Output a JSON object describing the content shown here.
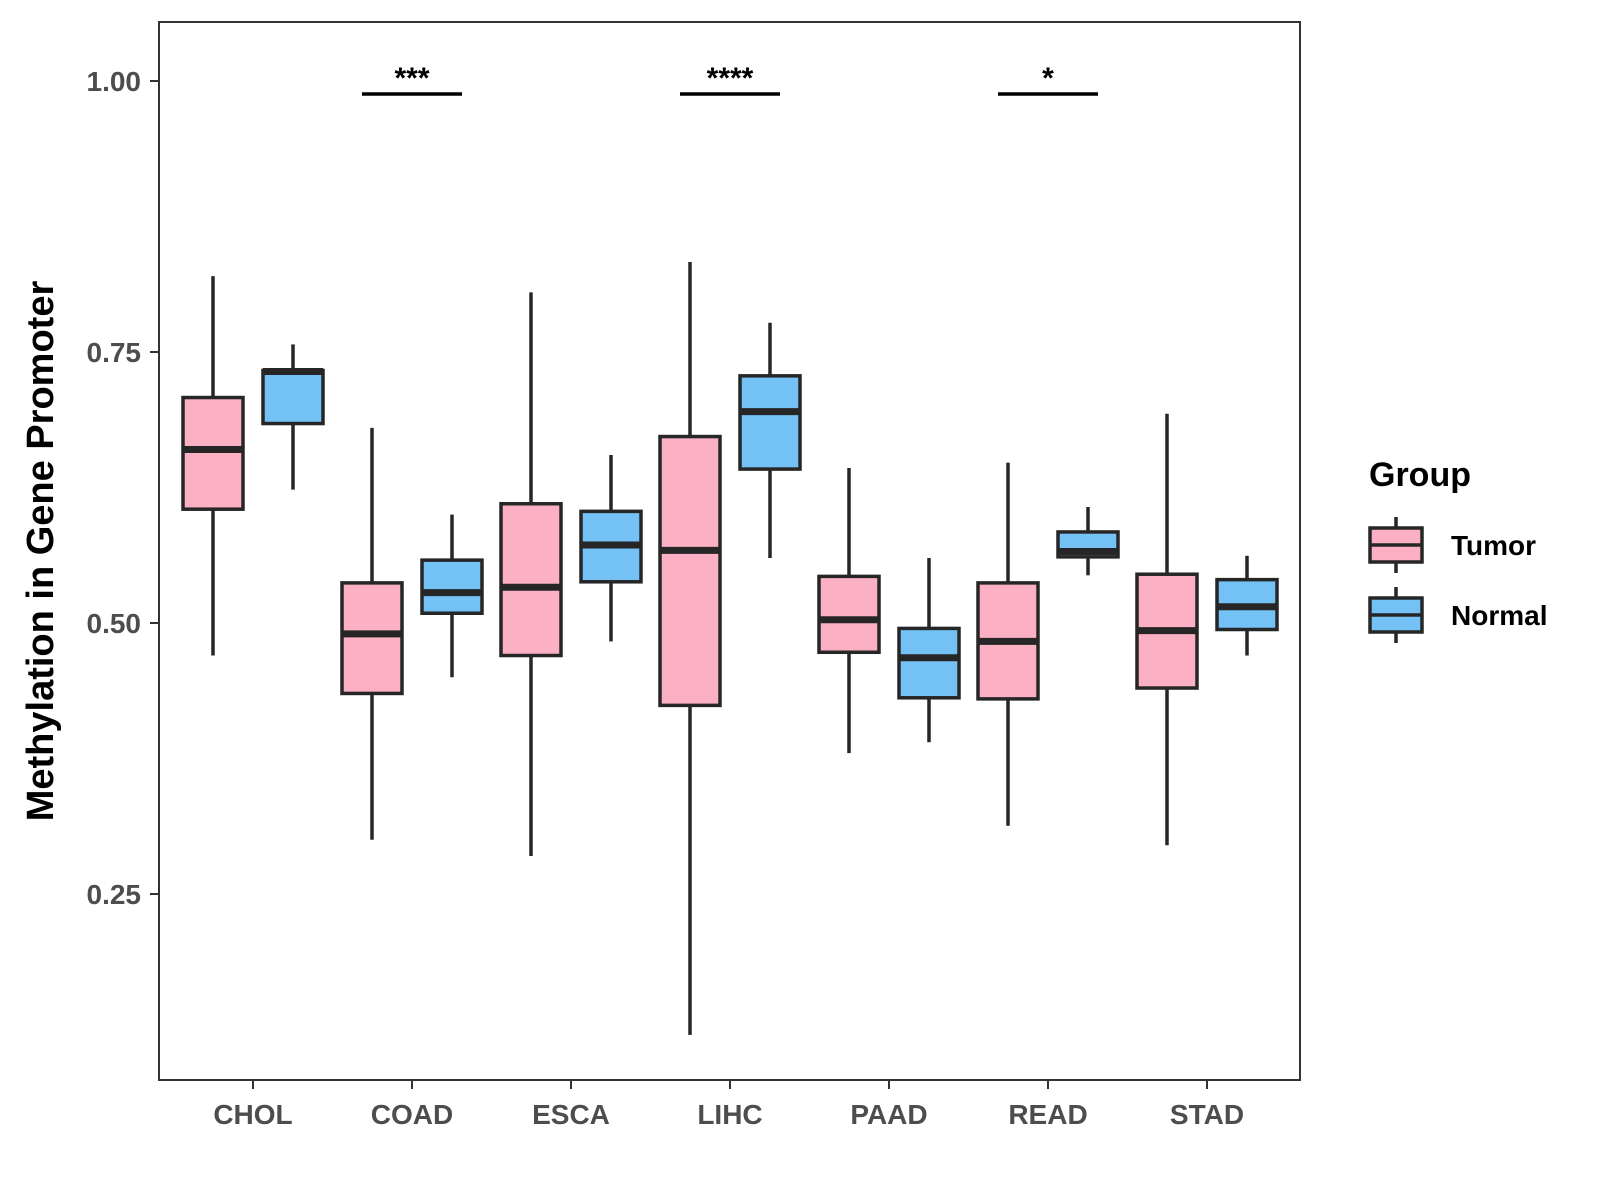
{
  "chart_data": {
    "type": "boxplot",
    "title": "",
    "xlabel": "",
    "ylabel": "Methylation in Gene Promoter",
    "ylim": [
      0.08,
      1.055
    ],
    "yticks": [
      0.25,
      0.5,
      0.75,
      1.0
    ],
    "ytick_labels": [
      "0.25",
      "0.50",
      "0.75",
      "1.00"
    ],
    "categories": [
      "CHOL",
      "COAD",
      "ESCA",
      "LIHC",
      "PAAD",
      "READ",
      "STAD"
    ],
    "legend": {
      "title": "Group",
      "position": "right"
    },
    "colors": {
      "Tumor": "#FBB1C3",
      "Normal": "#74C1F5",
      "stroke": "#262626"
    },
    "series": [
      {
        "name": "Tumor",
        "boxes": [
          {
            "min": 0.47,
            "q1": 0.605,
            "median": 0.66,
            "q3": 0.708,
            "max": 0.82
          },
          {
            "min": 0.3,
            "q1": 0.435,
            "median": 0.49,
            "q3": 0.537,
            "max": 0.68
          },
          {
            "min": 0.285,
            "q1": 0.47,
            "median": 0.533,
            "q3": 0.61,
            "max": 0.805
          },
          {
            "min": 0.12,
            "q1": 0.424,
            "median": 0.567,
            "q3": 0.672,
            "max": 0.833
          },
          {
            "min": 0.38,
            "q1": 0.473,
            "median": 0.503,
            "q3": 0.543,
            "max": 0.643
          },
          {
            "min": 0.313,
            "q1": 0.43,
            "median": 0.483,
            "q3": 0.537,
            "max": 0.648
          },
          {
            "min": 0.295,
            "q1": 0.44,
            "median": 0.493,
            "q3": 0.545,
            "max": 0.693
          }
        ]
      },
      {
        "name": "Normal",
        "boxes": [
          {
            "min": 0.623,
            "q1": 0.684,
            "median": 0.732,
            "q3": 0.733,
            "max": 0.757
          },
          {
            "min": 0.45,
            "q1": 0.509,
            "median": 0.528,
            "q3": 0.558,
            "max": 0.6
          },
          {
            "min": 0.483,
            "q1": 0.538,
            "median": 0.572,
            "q3": 0.603,
            "max": 0.655
          },
          {
            "min": 0.56,
            "q1": 0.642,
            "median": 0.695,
            "q3": 0.728,
            "max": 0.777
          },
          {
            "min": 0.39,
            "q1": 0.431,
            "median": 0.468,
            "q3": 0.495,
            "max": 0.56
          },
          {
            "min": 0.544,
            "q1": 0.561,
            "median": 0.566,
            "q3": 0.584,
            "max": 0.607
          },
          {
            "min": 0.47,
            "q1": 0.494,
            "median": 0.515,
            "q3": 0.54,
            "max": 0.562
          }
        ]
      }
    ],
    "significance": [
      {
        "category": "COAD",
        "label": "***",
        "y": 0.988
      },
      {
        "category": "LIHC",
        "label": "****",
        "y": 0.988
      },
      {
        "category": "READ",
        "label": "*",
        "y": 0.988
      }
    ]
  }
}
